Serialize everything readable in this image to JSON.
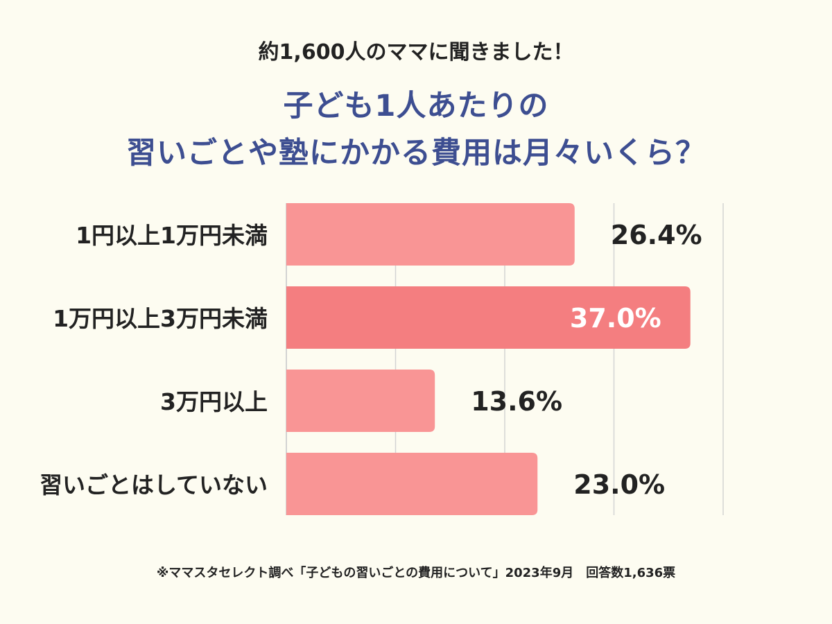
{
  "header": {
    "subtitle": "約1,600人のママに聞きました！",
    "title_line1": "子ども1人あたりの",
    "title_line2": "習いごとや塾にかかる費用は月々いくら？"
  },
  "footnote": "※ママスタセレクト調べ「子どもの習いごとの費用について」2023年9月　回答数1,636票",
  "colors": {
    "bar": "#f99595",
    "bar_highlight": "#f47e80",
    "title": "#3d4e91",
    "text": "#222222",
    "highlight_label": "#ffffff",
    "grid": "#d3d3d3",
    "background": "#fdfcf1"
  },
  "chart_data": {
    "type": "bar",
    "orientation": "horizontal",
    "categories": [
      "1円以上1万円未満",
      "1万円以上3万円未満",
      "3万円以上",
      "習いごとはしていない"
    ],
    "values": [
      26.4,
      37.0,
      13.6,
      23.0
    ],
    "value_labels": [
      "26.4%",
      "37.0%",
      "13.6%",
      "23.0%"
    ],
    "highlight_index": 1,
    "xlim": [
      0,
      40
    ],
    "grid": true,
    "gridline_values": [
      0,
      10,
      20,
      30,
      40
    ],
    "title": "子ども1人あたりの習いごとや塾にかかる費用は月々いくら？",
    "xlabel": "",
    "ylabel": ""
  }
}
